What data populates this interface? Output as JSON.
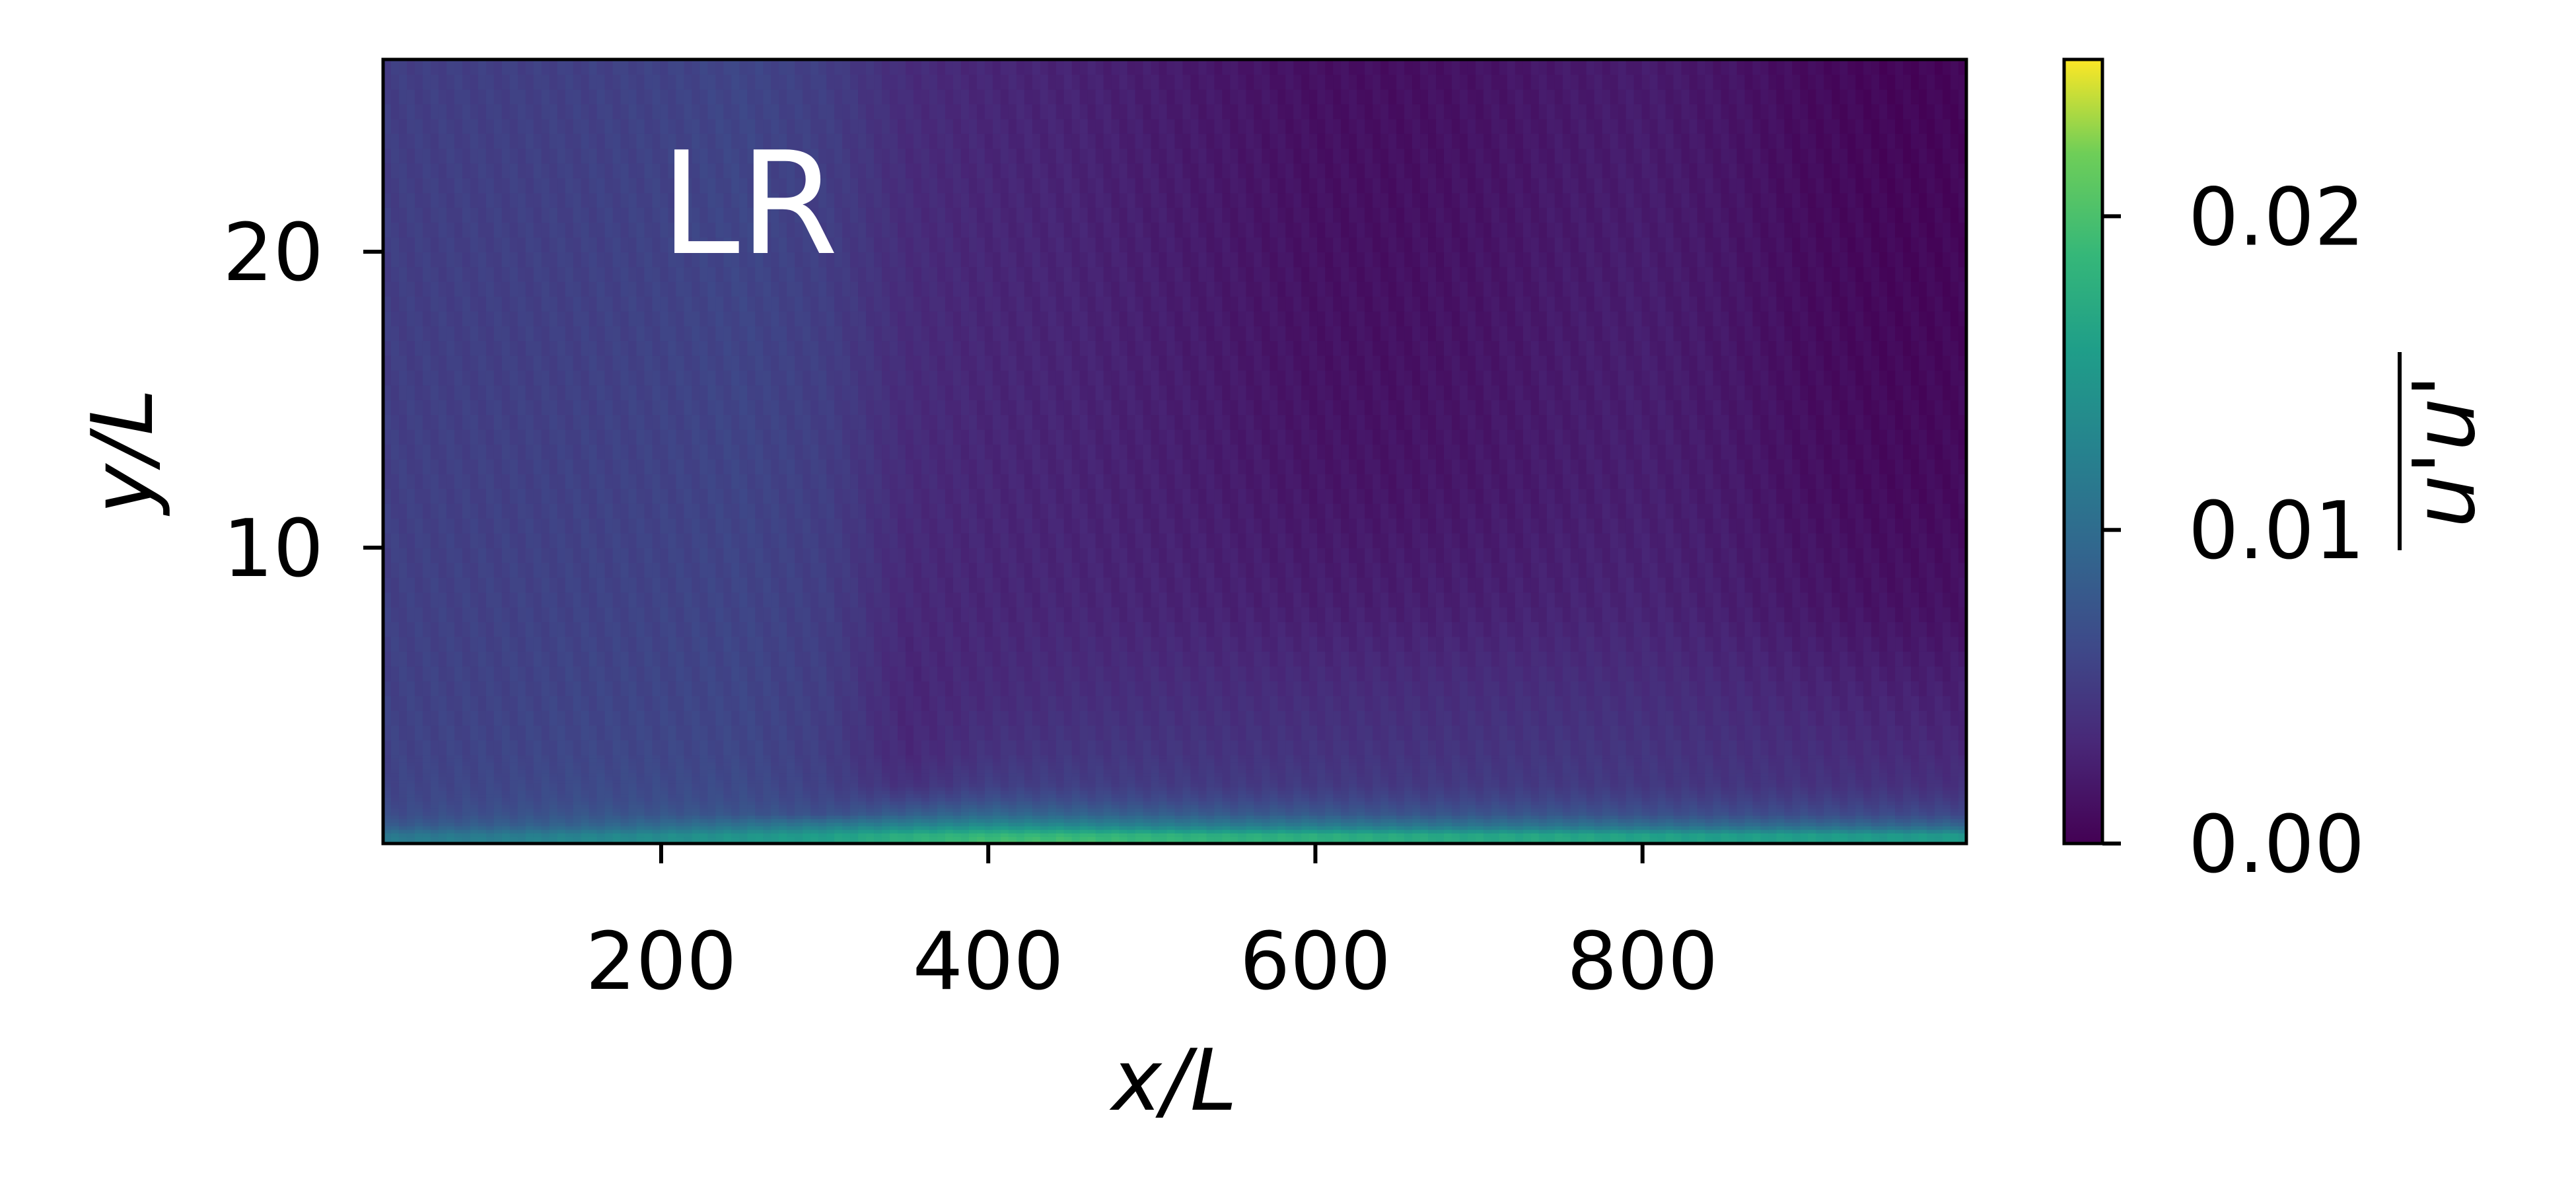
{
  "chart_data": {
    "type": "heatmap",
    "annotation": "LR",
    "xlabel": "x/L",
    "ylabel": "y/L",
    "xlim": [
      30,
      998
    ],
    "ylim": [
      0,
      26.5
    ],
    "x_ticks": [
      200,
      400,
      600,
      800
    ],
    "x_tick_labels": [
      "200",
      "400",
      "600",
      "800"
    ],
    "y_ticks": [
      10,
      20
    ],
    "y_tick_labels": [
      "10",
      "20"
    ],
    "colorbar": {
      "label": "u'u'",
      "colormap": "viridis",
      "range": [
        0,
        0.025
      ],
      "ticks": [
        0,
        0.01,
        0.02
      ],
      "tick_labels": [
        "0.00",
        "0.01",
        "0.02"
      ]
    },
    "grid": false,
    "field": {
      "x": [
        30,
        100,
        150,
        200,
        250,
        300,
        350,
        400,
        450,
        500,
        550,
        600,
        650,
        700,
        750,
        800,
        850,
        900,
        950,
        998
      ],
      "y": [
        0,
        0.3,
        0.6,
        1,
        1.5,
        2,
        3,
        5,
        8,
        12,
        16,
        20,
        26.5
      ],
      "values": [
        [
          0.012,
          0.0125,
          0.0135,
          0.014,
          0.015,
          0.016,
          0.018,
          0.02,
          0.02,
          0.019,
          0.0185,
          0.018,
          0.0175,
          0.017,
          0.017,
          0.0165,
          0.016,
          0.016,
          0.0155,
          0.0155
        ],
        [
          0.011,
          0.0115,
          0.0125,
          0.0135,
          0.0145,
          0.0155,
          0.0175,
          0.0185,
          0.0185,
          0.018,
          0.0175,
          0.0175,
          0.017,
          0.0165,
          0.0165,
          0.016,
          0.0155,
          0.0155,
          0.015,
          0.015
        ],
        [
          0.008,
          0.0085,
          0.009,
          0.01,
          0.011,
          0.012,
          0.013,
          0.014,
          0.0135,
          0.0125,
          0.012,
          0.012,
          0.0115,
          0.011,
          0.011,
          0.0105,
          0.01,
          0.01,
          0.0095,
          0.0095
        ],
        [
          0.0065,
          0.007,
          0.0075,
          0.0075,
          0.0075,
          0.007,
          0.0085,
          0.0095,
          0.009,
          0.0085,
          0.008,
          0.008,
          0.0075,
          0.0075,
          0.0075,
          0.007,
          0.0068,
          0.0066,
          0.0064,
          0.0062
        ],
        [
          0.006,
          0.0063,
          0.0066,
          0.0066,
          0.0066,
          0.006,
          0.0058,
          0.0068,
          0.0066,
          0.0062,
          0.006,
          0.006,
          0.0058,
          0.0058,
          0.0058,
          0.0056,
          0.0054,
          0.0052,
          0.005,
          0.0048
        ],
        [
          0.0058,
          0.006,
          0.0063,
          0.0063,
          0.0063,
          0.0055,
          0.004,
          0.0052,
          0.0052,
          0.005,
          0.0048,
          0.0048,
          0.0047,
          0.0048,
          0.0048,
          0.0046,
          0.0044,
          0.0042,
          0.004,
          0.0038
        ],
        [
          0.0056,
          0.0058,
          0.006,
          0.006,
          0.006,
          0.0052,
          0.0032,
          0.0042,
          0.0045,
          0.0044,
          0.0042,
          0.0042,
          0.0042,
          0.0043,
          0.0044,
          0.0043,
          0.004,
          0.0037,
          0.0034,
          0.0032
        ],
        [
          0.0055,
          0.0056,
          0.0058,
          0.0058,
          0.0059,
          0.0052,
          0.003,
          0.0034,
          0.0037,
          0.0037,
          0.0036,
          0.0036,
          0.0036,
          0.0037,
          0.0038,
          0.0037,
          0.0034,
          0.003,
          0.0027,
          0.0025
        ],
        [
          0.0054,
          0.0055,
          0.0056,
          0.0057,
          0.0058,
          0.0052,
          0.0032,
          0.003,
          0.003,
          0.0028,
          0.0026,
          0.0024,
          0.0024,
          0.0025,
          0.0027,
          0.0028,
          0.0024,
          0.0018,
          0.0014,
          0.0013
        ],
        [
          0.0053,
          0.0054,
          0.0055,
          0.0056,
          0.0058,
          0.0052,
          0.0034,
          0.003,
          0.0028,
          0.0025,
          0.0021,
          0.0017,
          0.0016,
          0.0018,
          0.0022,
          0.0024,
          0.002,
          0.0012,
          0.0008,
          0.0008
        ],
        [
          0.0052,
          0.0053,
          0.0054,
          0.0056,
          0.0058,
          0.0052,
          0.0035,
          0.003,
          0.0028,
          0.0024,
          0.0019,
          0.0014,
          0.0013,
          0.0016,
          0.0021,
          0.0023,
          0.0018,
          0.001,
          0.0006,
          0.0006
        ],
        [
          0.0052,
          0.0053,
          0.0054,
          0.0056,
          0.0059,
          0.0052,
          0.0035,
          0.003,
          0.0028,
          0.0023,
          0.0018,
          0.0013,
          0.0012,
          0.0015,
          0.002,
          0.0022,
          0.0017,
          0.0009,
          0.0005,
          0.0005
        ],
        [
          0.0052,
          0.0053,
          0.0054,
          0.0056,
          0.0059,
          0.0052,
          0.0035,
          0.003,
          0.0027,
          0.0022,
          0.0017,
          0.0012,
          0.0011,
          0.0014,
          0.0019,
          0.0021,
          0.0016,
          0.0008,
          0.0004,
          0.0004
        ]
      ]
    }
  }
}
